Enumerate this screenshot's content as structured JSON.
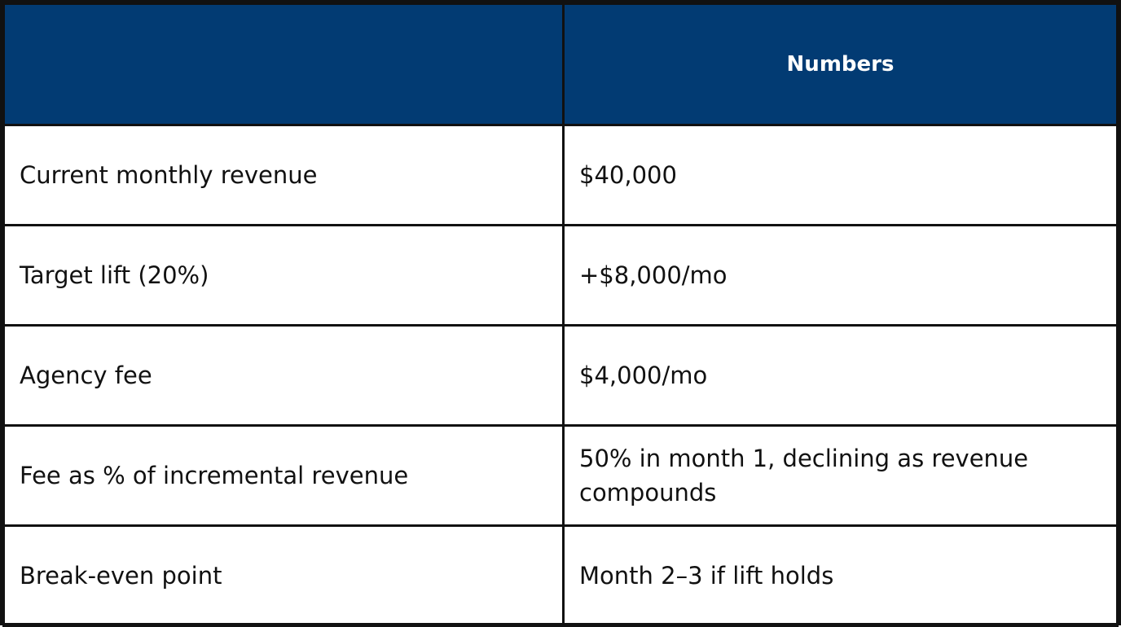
{
  "header": {
    "col1": "",
    "col2": "Numbers"
  },
  "rows": [
    {
      "label": "Current monthly revenue",
      "value": "$40,000"
    },
    {
      "label": "Target lift (20%)",
      "value": "+$8,000/mo"
    },
    {
      "label": "Agency fee",
      "value": "$4,000/mo"
    },
    {
      "label": "Fee as % of incremental revenue",
      "value": "50% in month 1, declining as revenue compounds"
    },
    {
      "label": "Break-even point",
      "value": "Month 2–3 if lift holds"
    }
  ],
  "colors": {
    "header_bg": "#023b73",
    "header_text": "#ffffff",
    "border": "#111111",
    "body_text": "#111111"
  }
}
